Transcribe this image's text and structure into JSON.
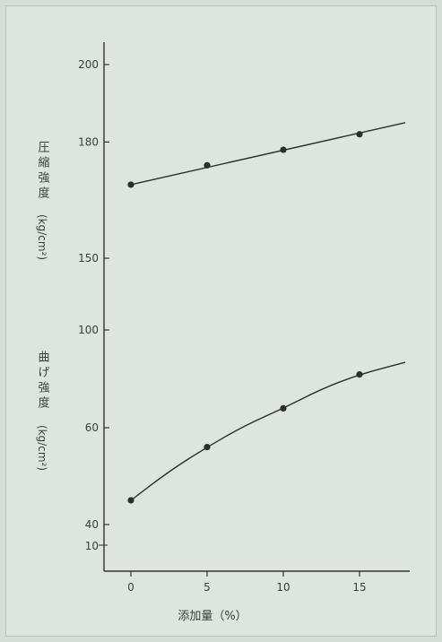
{
  "chart_data": {
    "type": "line",
    "xlabel": "添加量（%）",
    "ylabel_upper": "圧縮強度",
    "ylabel_upper_unit": "(kg/cm²)",
    "ylabel_lower": "曲げ強度",
    "ylabel_lower_unit": "(kg/cm²)",
    "x_ticks": [
      "0",
      "5",
      "10",
      "15"
    ],
    "y_ticks": [
      {
        "value": 40,
        "label": "40"
      },
      {
        "value": 60,
        "label": "60"
      },
      {
        "value": 100,
        "label": "100"
      },
      {
        "value": 150,
        "label": "150"
      },
      {
        "value": 180,
        "label": "180"
      },
      {
        "value": 200,
        "label": "200"
      }
    ],
    "y_bottom_label": "10",
    "xlim": [
      -1.5,
      18
    ],
    "ylim": [
      30,
      210
    ],
    "series": [
      {
        "key": "compressive",
        "x": [
          0,
          5,
          10,
          15
        ],
        "y": [
          169,
          174,
          178,
          182
        ],
        "curve_x": [
          0,
          18
        ],
        "curve_y": [
          169,
          185
        ]
      },
      {
        "key": "bending",
        "x": [
          0,
          5,
          10,
          15
        ],
        "y": [
          45,
          56,
          64,
          71
        ],
        "curve_x": [
          0,
          2.5,
          5,
          7.5,
          10,
          12.5,
          15,
          18
        ],
        "curve_y": [
          45,
          51,
          56,
          60.5,
          64,
          68,
          71,
          73.5
        ]
      }
    ]
  }
}
